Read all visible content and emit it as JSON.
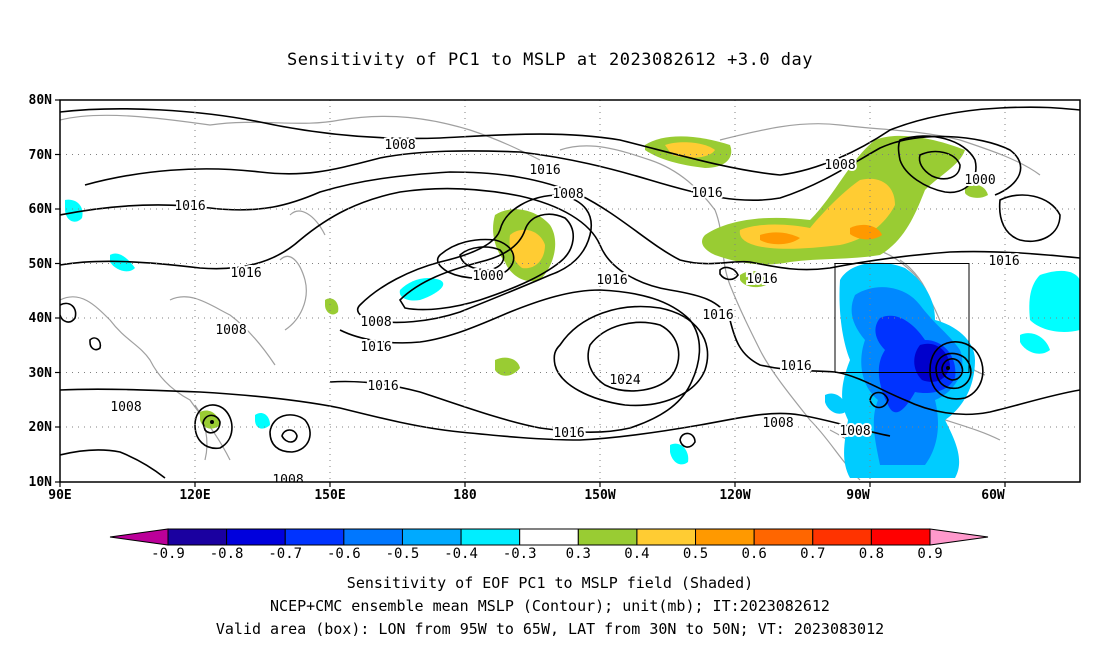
{
  "title": "Sensitivity of PC1 to MSLP at 2023082612 +3.0 day",
  "map": {
    "lat_ticks": [
      "80N",
      "70N",
      "60N",
      "50N",
      "40N",
      "30N",
      "20N",
      "10N"
    ],
    "lon_ticks": [
      "90E",
      "120E",
      "150E",
      "180",
      "150W",
      "120W",
      "90W",
      "60W"
    ],
    "valid_box": {
      "lon_range": [
        "95W",
        "65W"
      ],
      "lat_range": [
        "30N",
        "50N"
      ]
    },
    "contour_labels": [
      "1008",
      "1016",
      "1016",
      "1008",
      "1016",
      "1016",
      "1008",
      "1000",
      "1016",
      "1016",
      "1016",
      "1008",
      "1000",
      "1008",
      "1016",
      "1024",
      "1016",
      "1016",
      "1016",
      "1008",
      "1008",
      "1016",
      "1008",
      "1008"
    ],
    "colors": {
      "positive": [
        "#99cc33",
        "#ffcc33",
        "#ff9900",
        "#ff6600",
        "#ff3300",
        "#ff0000"
      ],
      "negative": [
        "#0000aa",
        "#0000dd",
        "#0033ff",
        "#0077ff",
        "#00aaff",
        "#00ffff"
      ]
    }
  },
  "colorbar": {
    "labels": [
      "-0.9",
      "-0.8",
      "-0.7",
      "-0.6",
      "-0.5",
      "-0.4",
      "-0.3",
      "0.3",
      "0.4",
      "0.5",
      "0.6",
      "0.7",
      "0.8",
      "0.9"
    ],
    "colors": [
      "#1a00a0",
      "#0000dd",
      "#0033ff",
      "#0077ff",
      "#00aaff",
      "#00eeff",
      "#ffffff",
      "#99cc33",
      "#ffcc33",
      "#ff9900",
      "#ff6600",
      "#ff3300",
      "#ff0000"
    ],
    "low_end_color": "#bb0099",
    "high_end_color": "#ff99cc"
  },
  "captions": [
    "Sensitivity of EOF PC1 to MSLP field (Shaded)",
    "NCEP+CMC ensemble mean MSLP (Contour); unit(mb); IT:2023082612",
    "Valid area (box): LON from 95W to 65W, LAT from 30N to 50N; VT: 2023083012"
  ]
}
